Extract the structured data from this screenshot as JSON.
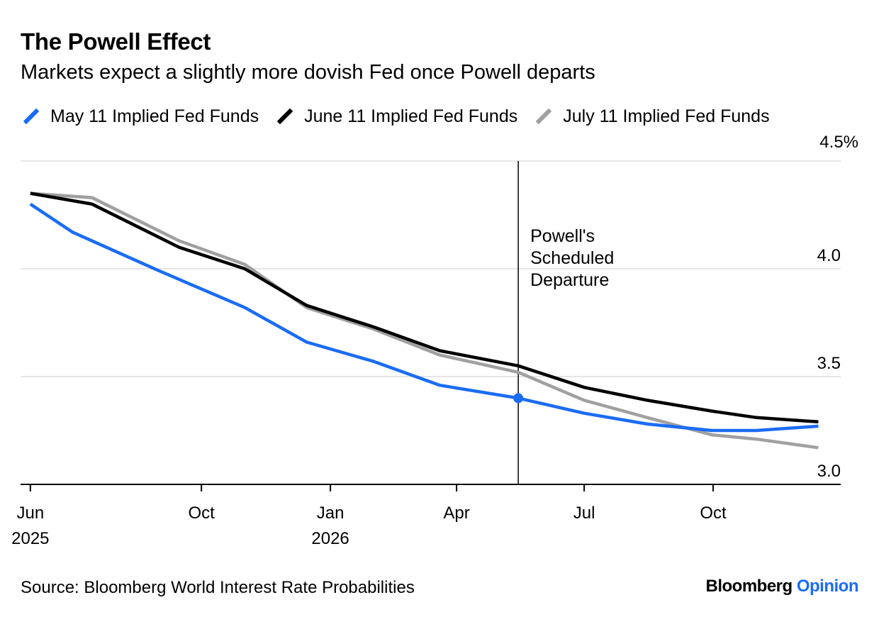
{
  "header": {
    "title": "The Powell Effect",
    "subtitle": "Markets expect a slightly more dovish Fed once Powell departs"
  },
  "footer": {
    "source": "Source: Bloomberg World Interest Rate Probabilities",
    "brand_primary": "Bloomberg",
    "brand_secondary": "Opinion"
  },
  "chart_data": {
    "type": "line",
    "title": "The Powell Effect",
    "subtitle": "Markets expect a slightly more dovish Fed once Powell departs",
    "y_unit_top_label": "4.5%",
    "ylim": [
      3.0,
      4.5
    ],
    "y_ticks": [
      {
        "value": 4.5,
        "label": "4.5%"
      },
      {
        "value": 4.0,
        "label": "4.0"
      },
      {
        "value": 3.5,
        "label": "3.5"
      },
      {
        "value": 3.0,
        "label": "3.0"
      }
    ],
    "xlim": [
      "2025-05-25",
      "2026-12-31"
    ],
    "x_ticks": [
      {
        "date": "2025-06-01",
        "label": "Jun",
        "year": "2025"
      },
      {
        "date": "2025-10-01",
        "label": "Oct",
        "year": ""
      },
      {
        "date": "2026-01-01",
        "label": "Jan",
        "year": "2026"
      },
      {
        "date": "2026-04-01",
        "label": "Apr",
        "year": ""
      },
      {
        "date": "2026-07-01",
        "label": "Jul",
        "year": ""
      },
      {
        "date": "2026-10-01",
        "label": "Oct",
        "year": ""
      }
    ],
    "grid": true,
    "legend_position": "top-left",
    "annotation": {
      "date": "2026-05-15",
      "lines": [
        "Powell's",
        "Scheduled",
        "Departure"
      ]
    },
    "series": [
      {
        "name": "May 11 Implied Fed Funds",
        "color": "#1a6cf5",
        "marker": {
          "date": "2026-05-15",
          "value": 3.4
        },
        "points": [
          {
            "date": "2025-06-01",
            "value": 4.3
          },
          {
            "date": "2025-07-01",
            "value": 4.17
          },
          {
            "date": "2025-09-01",
            "value": 3.99
          },
          {
            "date": "2025-11-01",
            "value": 3.82
          },
          {
            "date": "2025-12-15",
            "value": 3.66
          },
          {
            "date": "2026-02-01",
            "value": 3.57
          },
          {
            "date": "2026-03-20",
            "value": 3.46
          },
          {
            "date": "2026-05-15",
            "value": 3.4
          },
          {
            "date": "2026-07-01",
            "value": 3.33
          },
          {
            "date": "2026-08-15",
            "value": 3.28
          },
          {
            "date": "2026-09-30",
            "value": 3.25
          },
          {
            "date": "2026-11-01",
            "value": 3.25
          },
          {
            "date": "2026-12-15",
            "value": 3.27
          }
        ]
      },
      {
        "name": "June 11 Implied Fed Funds",
        "color": "#000000",
        "points": [
          {
            "date": "2025-06-01",
            "value": 4.35
          },
          {
            "date": "2025-07-15",
            "value": 4.3
          },
          {
            "date": "2025-09-15",
            "value": 4.1
          },
          {
            "date": "2025-11-01",
            "value": 4.0
          },
          {
            "date": "2025-12-15",
            "value": 3.83
          },
          {
            "date": "2026-02-01",
            "value": 3.73
          },
          {
            "date": "2026-03-20",
            "value": 3.62
          },
          {
            "date": "2026-05-15",
            "value": 3.55
          },
          {
            "date": "2026-07-01",
            "value": 3.45
          },
          {
            "date": "2026-08-15",
            "value": 3.39
          },
          {
            "date": "2026-09-30",
            "value": 3.34
          },
          {
            "date": "2026-11-01",
            "value": 3.31
          },
          {
            "date": "2026-12-15",
            "value": 3.29
          }
        ]
      },
      {
        "name": "July 11 Implied Fed Funds",
        "color": "#a0a0a0",
        "points": [
          {
            "date": "2025-06-01",
            "value": 4.35
          },
          {
            "date": "2025-07-15",
            "value": 4.33
          },
          {
            "date": "2025-09-15",
            "value": 4.13
          },
          {
            "date": "2025-11-01",
            "value": 4.02
          },
          {
            "date": "2025-12-15",
            "value": 3.82
          },
          {
            "date": "2026-02-01",
            "value": 3.72
          },
          {
            "date": "2026-03-20",
            "value": 3.6
          },
          {
            "date": "2026-05-15",
            "value": 3.52
          },
          {
            "date": "2026-07-01",
            "value": 3.39
          },
          {
            "date": "2026-08-15",
            "value": 3.31
          },
          {
            "date": "2026-09-30",
            "value": 3.23
          },
          {
            "date": "2026-11-01",
            "value": 3.21
          },
          {
            "date": "2026-12-15",
            "value": 3.17
          }
        ]
      }
    ]
  }
}
